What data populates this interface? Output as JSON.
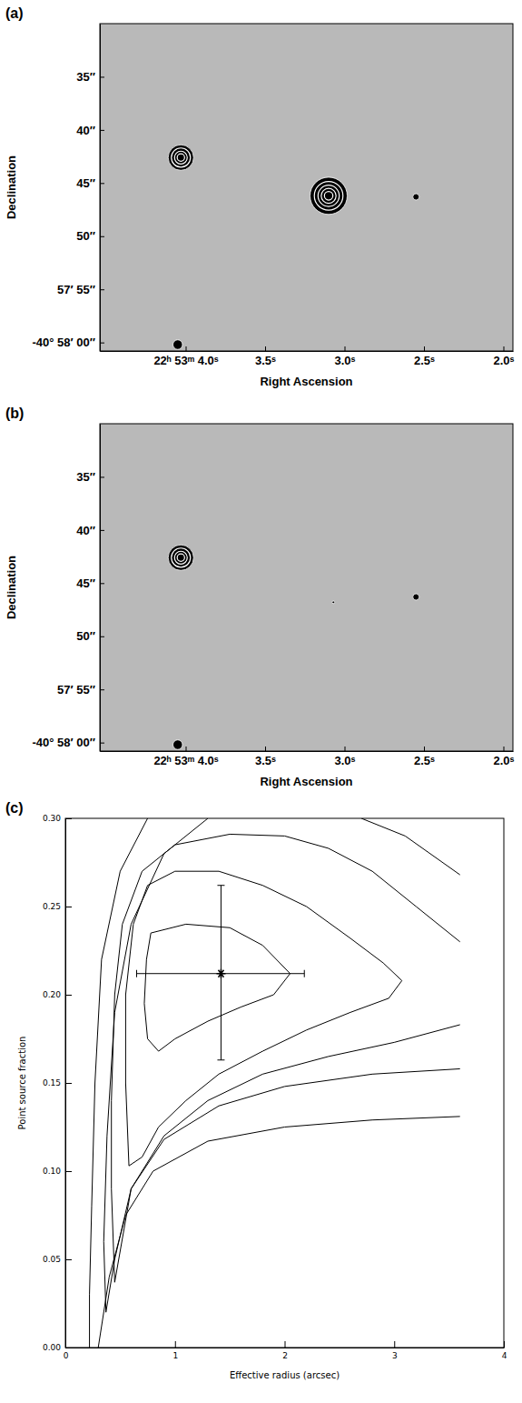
{
  "chart_data": [
    {
      "type": "image",
      "panel": "(a)",
      "x_label": "Right Ascension",
      "y_label": "Declination",
      "xlim": [
        4.54,
        1.94
      ],
      "ylim": [
        60.8,
        30.0
      ],
      "xticks": [
        {
          "value": 4.0,
          "label": "22ʰ 53ᵐ 4.0ˢ"
        },
        {
          "value": 3.5,
          "label": "3.5ˢ"
        },
        {
          "value": 3.0,
          "label": "3.0ˢ"
        },
        {
          "value": 2.5,
          "label": "2.5ˢ"
        },
        {
          "value": 2.0,
          "label": "2.0ˢ"
        }
      ],
      "yticks": [
        {
          "value": 35,
          "label": "35″"
        },
        {
          "value": 40,
          "label": "40″"
        },
        {
          "value": 45,
          "label": "45″"
        },
        {
          "value": 50,
          "label": "50″"
        },
        {
          "value": 55,
          "label": "57′ 55″"
        },
        {
          "value": 60,
          "label": "-40° 58′ 00″"
        }
      ],
      "sources": [
        {
          "x": 3.1,
          "y": 46.2,
          "radii": [
            1.75,
            1.35,
            1.0,
            0.7,
            0.4
          ]
        },
        {
          "x": 4.03,
          "y": 42.6,
          "radii": [
            1.2,
            0.9,
            0.6,
            0.35
          ]
        },
        {
          "x": 4.05,
          "y": 60.2,
          "radii": [
            0.45
          ]
        },
        {
          "x": 2.55,
          "y": 46.3,
          "radii": [
            0.3
          ]
        }
      ]
    },
    {
      "type": "image",
      "panel": "(b)",
      "x_label": "Right Ascension",
      "y_label": "Declination",
      "xlim": [
        4.54,
        1.94
      ],
      "ylim": [
        60.8,
        30.0
      ],
      "xticks": [
        {
          "value": 4.0,
          "label": "22ʰ 53ᵐ 4.0ˢ"
        },
        {
          "value": 3.5,
          "label": "3.5ˢ"
        },
        {
          "value": 3.0,
          "label": "3.0ˢ"
        },
        {
          "value": 2.5,
          "label": "2.5ˢ"
        },
        {
          "value": 2.0,
          "label": "2.0ˢ"
        }
      ],
      "yticks": [
        {
          "value": 35,
          "label": "35″"
        },
        {
          "value": 40,
          "label": "40″"
        },
        {
          "value": 45,
          "label": "45″"
        },
        {
          "value": 50,
          "label": "50″"
        },
        {
          "value": 55,
          "label": "57′ 55″"
        },
        {
          "value": 60,
          "label": "-40° 58′ 00″"
        }
      ],
      "sources": [
        {
          "x": 4.03,
          "y": 42.6,
          "radii": [
            1.2,
            0.9,
            0.6,
            0.35
          ]
        },
        {
          "x": 4.05,
          "y": 60.2,
          "radii": [
            0.45
          ]
        },
        {
          "x": 2.55,
          "y": 46.3,
          "radii": [
            0.3
          ]
        },
        {
          "x": 3.07,
          "y": 46.8,
          "radii": [
            0.12
          ]
        }
      ]
    },
    {
      "type": "contour",
      "panel": "(c)",
      "x_label": "Effective radius (arcsec)",
      "y_label": "Point source fraction",
      "color": "#000000",
      "marker": "asterisk",
      "xlim": [
        0,
        4
      ],
      "ylim": [
        0,
        0.3
      ],
      "xticks": [
        0,
        1,
        2,
        3,
        4
      ],
      "yticks": [
        {
          "value": 0,
          "label": "0.00"
        },
        0.05,
        {
          "value": 0.1,
          "label": "0.10"
        },
        0.15,
        {
          "value": 0.2,
          "label": "0.20"
        },
        0.25,
        {
          "value": 0.3,
          "label": "0.30"
        }
      ],
      "contours": [
        {
          "x": [
            0.78,
            1.1,
            1.5,
            1.8,
            2.05,
            1.9,
            1.6,
            1.3,
            1.0,
            0.85,
            0.75,
            0.72,
            0.74,
            0.78
          ],
          "y": [
            0.235,
            0.24,
            0.238,
            0.228,
            0.212,
            0.2,
            0.193,
            0.185,
            0.175,
            0.168,
            0.175,
            0.195,
            0.22,
            0.235
          ]
        },
        {
          "x": [
            0.58,
            0.55,
            0.55,
            0.62,
            0.75,
            1.0,
            1.4,
            1.8,
            2.2,
            2.6,
            2.9,
            3.07,
            2.95,
            2.6,
            2.2,
            1.8,
            1.4,
            1.1,
            0.85,
            0.7,
            0.58
          ],
          "y": [
            0.103,
            0.15,
            0.2,
            0.24,
            0.262,
            0.27,
            0.27,
            0.262,
            0.25,
            0.232,
            0.218,
            0.208,
            0.198,
            0.19,
            0.18,
            0.168,
            0.155,
            0.14,
            0.125,
            0.108,
            0.103
          ]
        },
        {
          "x": [
            3.6,
            3.0,
            2.4,
            1.8,
            1.3,
            0.9,
            0.6,
            0.45,
            0.42,
            0.42,
            0.45,
            0.52,
            0.7,
            1.0,
            1.5,
            2.0,
            2.4,
            2.8,
            3.2,
            3.6
          ],
          "y": [
            0.183,
            0.173,
            0.165,
            0.155,
            0.14,
            0.12,
            0.09,
            0.037,
            0.09,
            0.14,
            0.2,
            0.24,
            0.27,
            0.285,
            0.291,
            0.29,
            0.283,
            0.27,
            0.25,
            0.23
          ]
        },
        {
          "x": [
            1.3,
            0.9,
            0.6,
            0.45,
            0.38,
            0.35,
            0.37,
            0.45,
            0.6,
            0.9,
            1.4,
            2.0,
            2.8,
            3.6
          ],
          "y": [
            0.3,
            0.28,
            0.24,
            0.19,
            0.12,
            0.06,
            0.02,
            0.05,
            0.09,
            0.118,
            0.137,
            0.148,
            0.155,
            0.158
          ]
        },
        {
          "x": [
            0.75,
            0.5,
            0.33,
            0.27,
            0.24,
            0.22,
            0.22
          ],
          "y": [
            0.3,
            0.27,
            0.22,
            0.15,
            0.08,
            0.03,
            0.0
          ]
        },
        {
          "x": [
            0.3,
            0.4,
            0.55,
            0.8,
            1.3,
            2.0,
            2.8,
            3.6
          ],
          "y": [
            0.0,
            0.04,
            0.075,
            0.1,
            0.117,
            0.125,
            0.129,
            0.131
          ]
        },
        {
          "x": [
            2.7,
            3.1,
            3.6
          ],
          "y": [
            0.3,
            0.29,
            0.268
          ]
        }
      ],
      "x": [
        1.42
      ],
      "y": [
        0.212
      ],
      "xerr": [
        [
          0.77,
          0.76
        ]
      ],
      "yerr": [
        [
          0.049,
          0.05
        ]
      ]
    }
  ]
}
